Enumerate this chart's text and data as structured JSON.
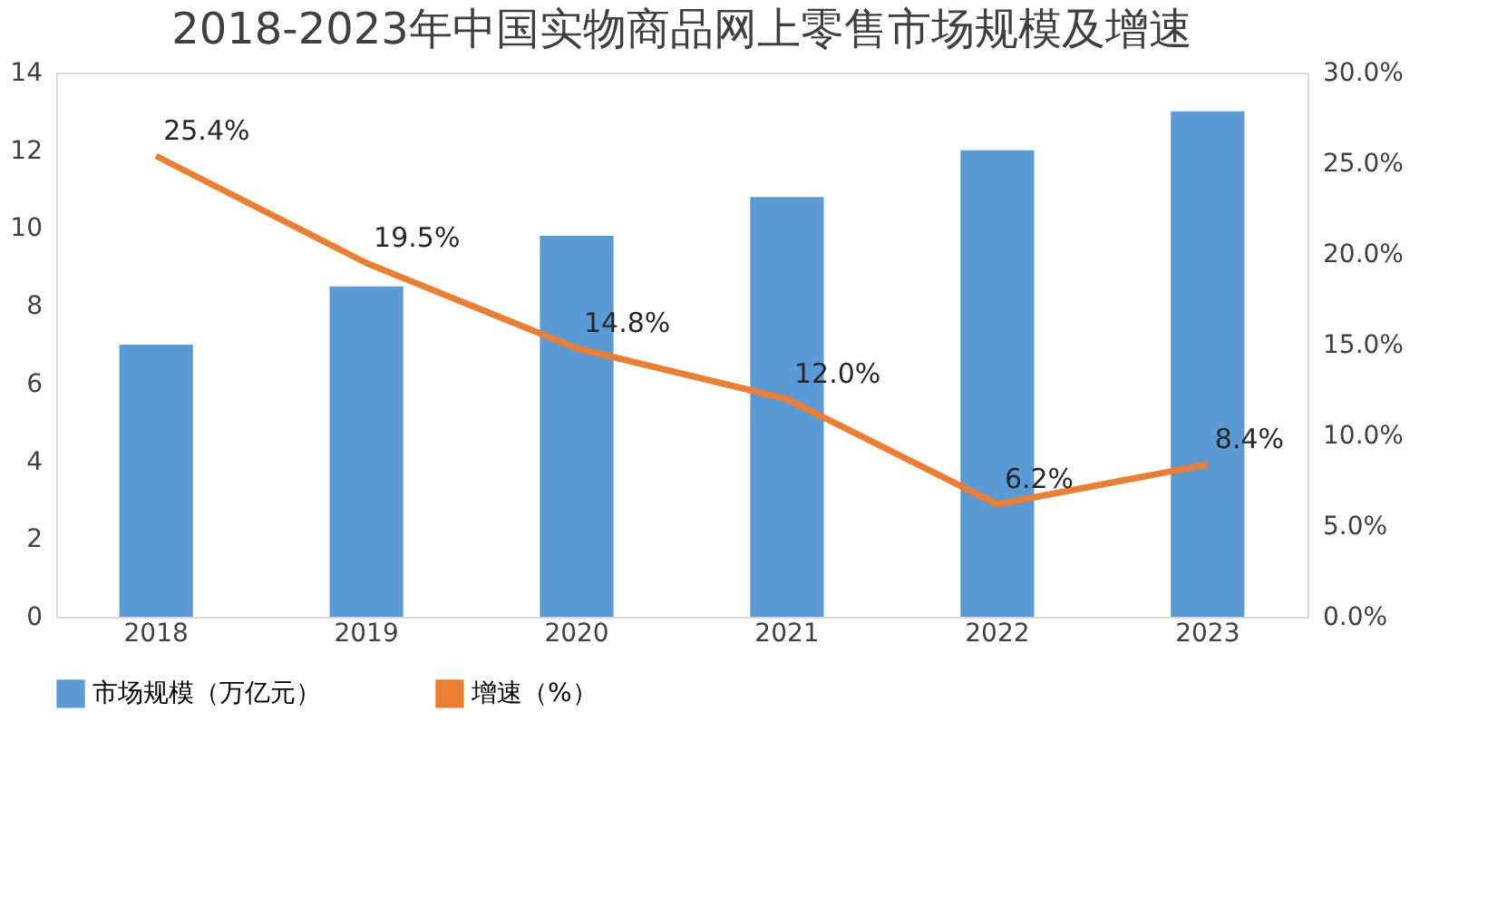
{
  "chart_data": {
    "type": "bar",
    "title": "2018-2023年中国实物商品网上零售市场规模及增速",
    "categories": [
      "2018",
      "2019",
      "2020",
      "2021",
      "2022",
      "2023"
    ],
    "series": [
      {
        "name": "市场规模（万亿元）",
        "color": "#5b9bd5",
        "values": [
          7.0,
          8.5,
          9.8,
          10.8,
          12.0,
          13.0
        ]
      },
      {
        "name": "增速（%）",
        "type": "line",
        "axis": "y2",
        "color": "#ed7d31",
        "values": [
          25.4,
          19.5,
          14.8,
          12.0,
          6.2,
          8.4
        ],
        "value_labels": [
          "25.4%",
          "19.5%",
          "14.8%",
          "12.0%",
          "6.2%",
          "8.4%"
        ]
      }
    ],
    "ylim": [
      0,
      14
    ],
    "yticks": [
      0,
      2,
      4,
      6,
      8,
      10,
      12,
      14
    ],
    "y2lim": [
      0,
      30
    ],
    "y2ticks": [
      {
        "value": 0,
        "label": "0.0%"
      },
      {
        "value": 5,
        "label": "5.0%"
      },
      {
        "value": 10,
        "label": "10.0%"
      },
      {
        "value": 15,
        "label": "15.0%"
      },
      {
        "value": 20,
        "label": "20.0%"
      },
      {
        "value": 25,
        "label": "25.0%"
      },
      {
        "value": 30,
        "label": "30.0%"
      }
    ],
    "grid": false,
    "legend": "bottom",
    "marker": "none",
    "line_style": "solid"
  }
}
